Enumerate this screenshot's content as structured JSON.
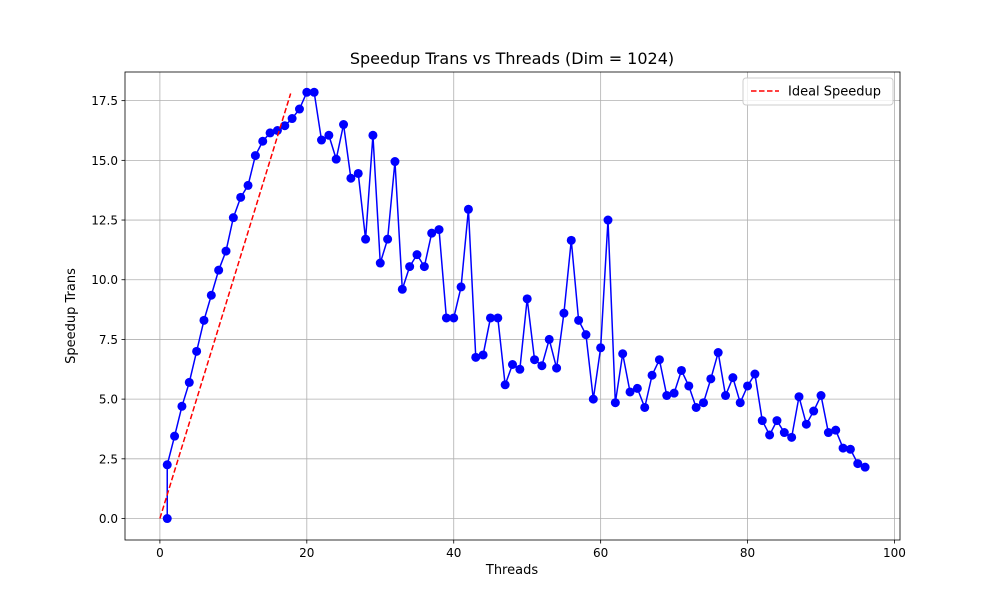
{
  "chart_data": {
    "type": "line",
    "title": "Speedup Trans vs Threads (Dim = 1024)",
    "xlabel": "Threads",
    "ylabel": "Speedup Trans",
    "xlim": [
      -4.75,
      100.75
    ],
    "ylim": [
      -0.9,
      18.7
    ],
    "xticks": [
      0,
      20,
      40,
      60,
      80,
      100
    ],
    "yticks": [
      0.0,
      2.5,
      5.0,
      7.5,
      10.0,
      12.5,
      15.0,
      17.5
    ],
    "xtick_labels": [
      "0",
      "20",
      "40",
      "60",
      "80",
      "100"
    ],
    "ytick_labels": [
      "0.0",
      "2.5",
      "5.0",
      "7.5",
      "10.0",
      "12.5",
      "15.0",
      "17.5"
    ],
    "grid": true,
    "legend_position": "top-right",
    "legend": [
      {
        "label": "Ideal Speedup",
        "style": "dashed",
        "color": "#ff0000"
      }
    ],
    "series": [
      {
        "color": "#0000ff",
        "marker": "circle",
        "x": [
          1,
          1,
          2,
          3,
          4,
          5,
          6,
          7,
          8,
          9,
          10,
          11,
          12,
          13,
          14,
          15,
          16,
          17,
          18,
          19,
          20,
          21,
          22,
          23,
          24,
          25,
          26,
          27,
          28,
          29,
          30,
          31,
          32,
          33,
          34,
          35,
          36,
          37,
          38,
          39,
          40,
          41,
          42,
          43,
          44,
          45,
          46,
          47,
          48,
          49,
          50,
          51,
          52,
          53,
          54,
          55,
          56,
          57,
          58,
          59,
          60,
          61,
          62,
          63,
          64,
          65,
          66,
          67,
          68,
          69,
          70,
          71,
          72,
          73,
          74,
          75,
          76,
          77,
          78,
          79,
          80,
          81,
          82,
          83,
          84,
          85,
          86,
          87,
          88,
          89,
          90,
          91,
          92,
          93,
          94,
          95,
          96
        ],
        "y": [
          0.0,
          2.25,
          3.45,
          4.7,
          5.7,
          7.0,
          8.3,
          9.35,
          10.4,
          11.2,
          12.6,
          13.45,
          13.95,
          15.2,
          15.8,
          16.15,
          16.25,
          16.45,
          16.75,
          17.15,
          17.85,
          17.85,
          15.85,
          16.05,
          15.05,
          16.5,
          14.25,
          14.45,
          11.7,
          16.05,
          10.7,
          11.7,
          14.95,
          9.6,
          10.55,
          11.05,
          10.55,
          11.95,
          12.1,
          8.4,
          8.4,
          9.7,
          12.95,
          6.75,
          6.85,
          8.4,
          8.4,
          5.6,
          6.45,
          6.25,
          9.2,
          6.65,
          6.4,
          7.5,
          6.3,
          8.6,
          11.65,
          8.3,
          7.7,
          5.0,
          7.15,
          12.5,
          4.85,
          6.9,
          5.3,
          5.45,
          4.65,
          6.0,
          6.65,
          5.15,
          5.25,
          6.2,
          5.55,
          4.65,
          4.85,
          5.85,
          6.95,
          5.15,
          5.9,
          4.85,
          5.55,
          6.05,
          4.1,
          3.5,
          4.1,
          3.6,
          3.4,
          5.1,
          3.95,
          4.5,
          5.15,
          3.6,
          3.7,
          2.95,
          2.9,
          2.3,
          2.15
        ]
      },
      {
        "name": "Ideal Speedup",
        "color": "#ff0000",
        "style": "dashed",
        "x": [
          0,
          17.8
        ],
        "y": [
          0,
          17.8
        ]
      }
    ]
  }
}
